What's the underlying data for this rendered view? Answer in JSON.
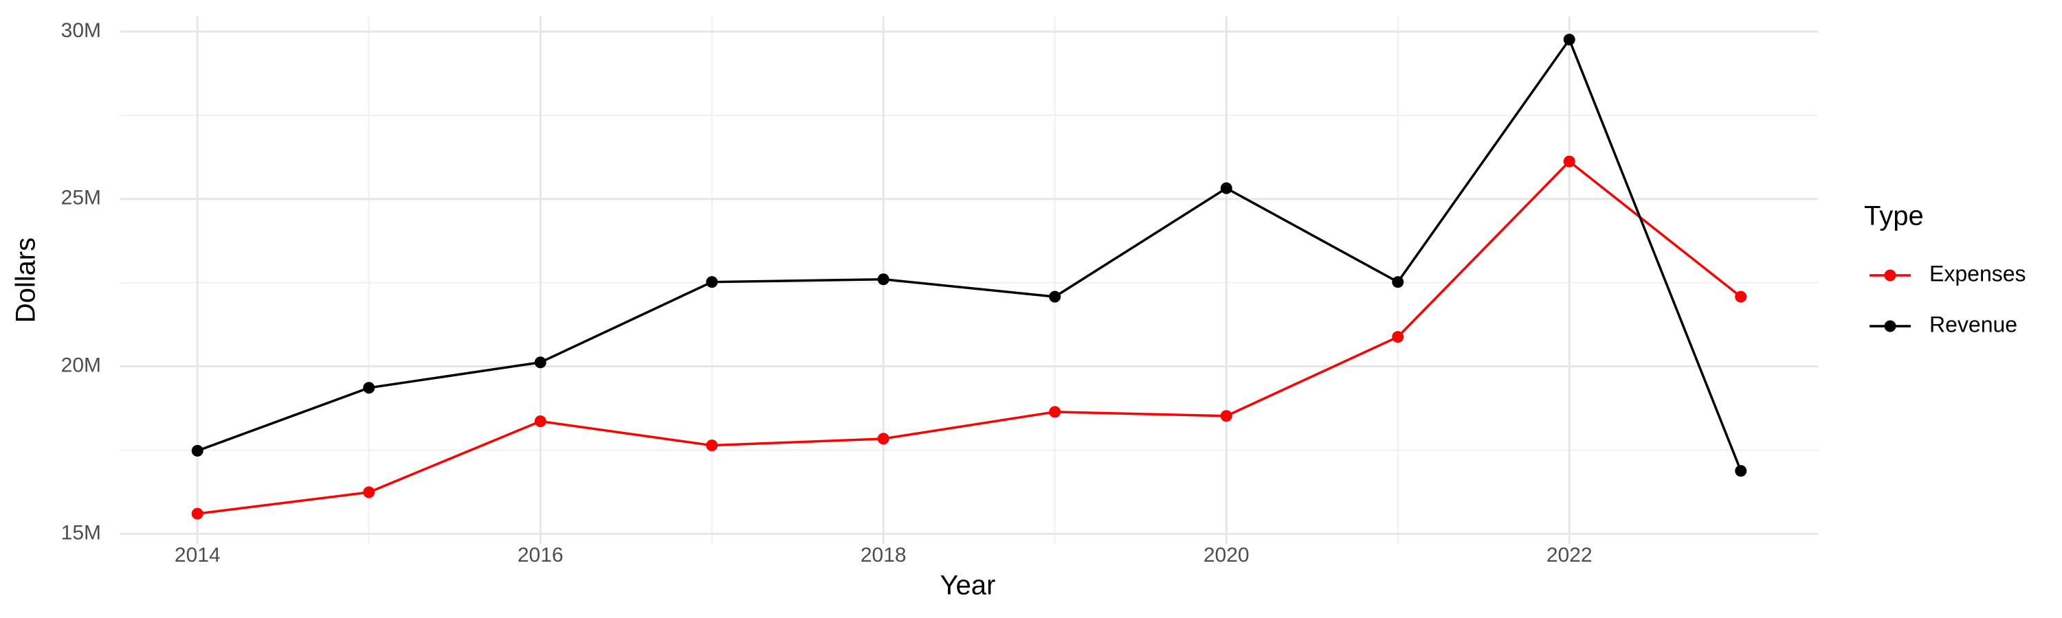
{
  "chart_data": {
    "type": "line",
    "x_label": "Year",
    "y_label": "Dollars",
    "legend_title": "Type",
    "legend_position": "right",
    "x": [
      2014,
      2015,
      2016,
      2017,
      2018,
      2019,
      2020,
      2021,
      2022,
      2023
    ],
    "series": [
      {
        "name": "Expenses",
        "color": "#ff0000",
        "values": [
          15600000,
          16240000,
          18360000,
          17640000,
          17840000,
          18640000,
          18520000,
          20880000,
          26120000,
          22080000
        ]
      },
      {
        "name": "Revenue",
        "color": "#000000",
        "values": [
          17480000,
          19360000,
          20120000,
          22520000,
          22600000,
          22080000,
          25320000,
          22520000,
          29760000,
          16880000
        ]
      }
    ],
    "xlim": [
      2013.55,
      2023.45
    ],
    "xticks": [
      2014,
      2016,
      2018,
      2020,
      2022
    ],
    "ylim": [
      14700000,
      30450000
    ],
    "yticks": [
      {
        "value": 15000000,
        "label": "15M"
      },
      {
        "value": 20000000,
        "label": "20M"
      },
      {
        "value": 25000000,
        "label": "25M"
      },
      {
        "value": 30000000,
        "label": "30M"
      }
    ],
    "grid": true,
    "minor_grid": true
  }
}
